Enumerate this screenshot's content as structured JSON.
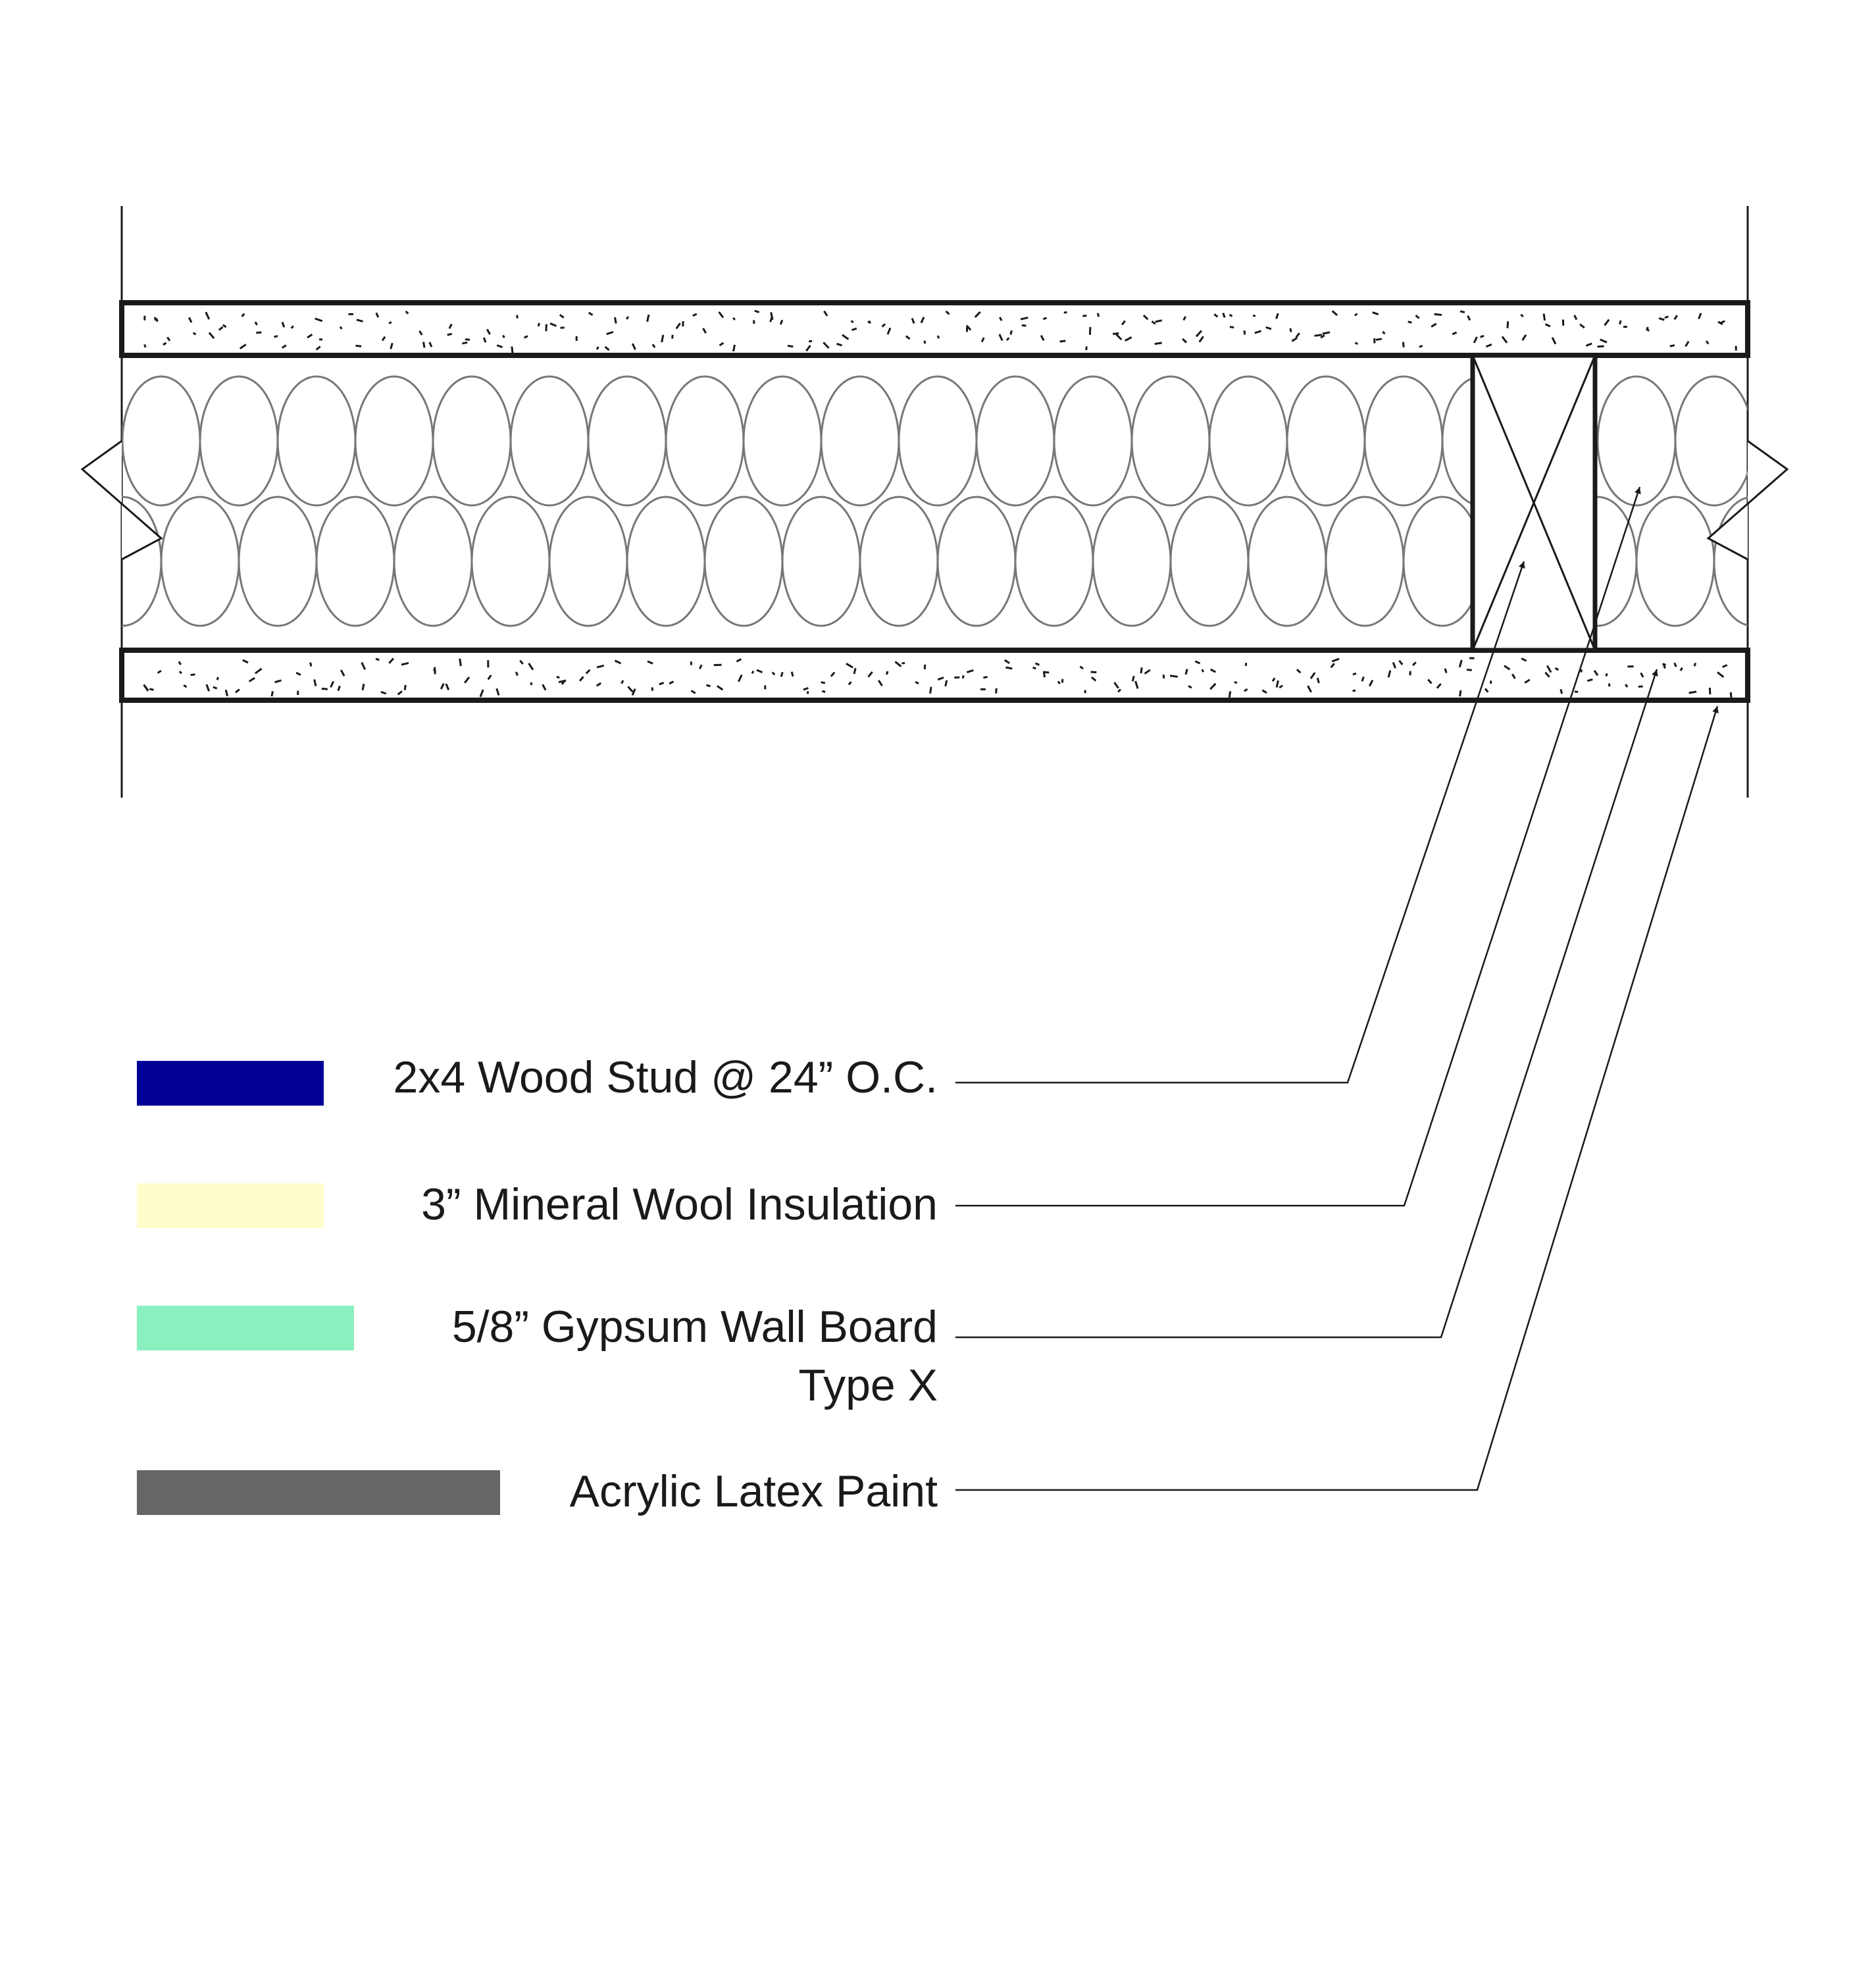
{
  "legend": {
    "items": [
      {
        "id": "wood-stud",
        "label_lines": [
          "2x4 Wood Stud @ 24” O.C."
        ],
        "swatch_color": "#010198"
      },
      {
        "id": "mineral-wool",
        "label_lines": [
          "3” Mineral Wool Insulation"
        ],
        "swatch_color": "#FFFDCC"
      },
      {
        "id": "gypsum-board",
        "label_lines": [
          "5/8” Gypsum Wall Board",
          "Type X"
        ],
        "swatch_color": "#8AF0C0"
      },
      {
        "id": "paint",
        "label_lines": [
          "Acrylic Latex Paint"
        ],
        "swatch_color": "#666666"
      }
    ]
  }
}
